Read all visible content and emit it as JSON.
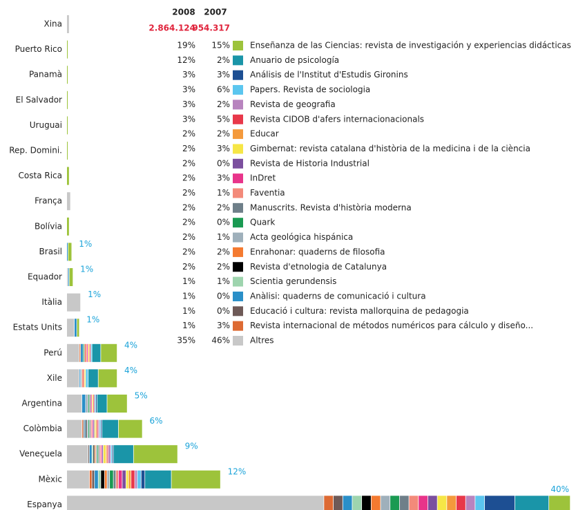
{
  "chart_data": {
    "type": "stacked-bar",
    "columns": [
      "2008",
      "2007"
    ],
    "totals": [
      "2.864.124",
      "954.317"
    ],
    "series": [
      {
        "name": "Enseñanza de las Ciencias: revista de investigación y experiencias didácticas",
        "color": "#9dc33b",
        "share_2008": "19%",
        "share_2007": "15%"
      },
      {
        "name": "Anuario de psicología",
        "color": "#1a95a8",
        "share_2008": "12%",
        "share_2007": "2%"
      },
      {
        "name": "Análisis de l'Institut d'Estudis Gironins",
        "color": "#1d4f93",
        "share_2008": "3%",
        "share_2007": "3%"
      },
      {
        "name": "Papers. Revista de sociologia",
        "color": "#5bc6ef",
        "share_2008": "3%",
        "share_2007": "6%"
      },
      {
        "name": "Revista de geografia",
        "color": "#b884bf",
        "share_2008": "3%",
        "share_2007": "2%"
      },
      {
        "name": "Revista CIDOB d'afers internacionacionals",
        "color": "#e8384a",
        "share_2008": "3%",
        "share_2007": "5%"
      },
      {
        "name": "Educar",
        "color": "#f49a3c",
        "share_2008": "2%",
        "share_2007": "2%"
      },
      {
        "name": "Gimbernat: revista catalana d'història de la medicina i de la ciència",
        "color": "#f6e646",
        "share_2008": "2%",
        "share_2007": "3%"
      },
      {
        "name": "Revista de Historia Industrial",
        "color": "#7b4f9e",
        "share_2008": "2%",
        "share_2007": "0%"
      },
      {
        "name": "InDret",
        "color": "#e8348a",
        "share_2008": "2%",
        "share_2007": "3%"
      },
      {
        "name": "Faventia",
        "color": "#f38a7a",
        "share_2008": "2%",
        "share_2007": "1%"
      },
      {
        "name": "Manuscrits. Revista d'història moderna",
        "color": "#6e7f89",
        "share_2008": "2%",
        "share_2007": "2%"
      },
      {
        "name": "Quark",
        "color": "#1a9a52",
        "share_2008": "2%",
        "share_2007": "0%"
      },
      {
        "name": "Acta geológica hispánica",
        "color": "#9fb0bb",
        "share_2008": "2%",
        "share_2007": "1%"
      },
      {
        "name": "Enrahonar: quaderns de filosofia",
        "color": "#f47a30",
        "share_2008": "2%",
        "share_2007": "2%"
      },
      {
        "name": "Revista d'etnologia de Catalunya",
        "color": "#000000",
        "share_2008": "2%",
        "share_2007": "2%"
      },
      {
        "name": "Scientia gerundensis",
        "color": "#9ed4ae",
        "share_2008": "1%",
        "share_2007": "1%"
      },
      {
        "name": "Anàlisi: quaderns de comunicació i cultura",
        "color": "#2a8fc8",
        "share_2008": "1%",
        "share_2007": "0%"
      },
      {
        "name": "Educació i cultura: revista mallorquina de pedagogia",
        "color": "#6e5a57",
        "share_2008": "1%",
        "share_2007": "0%"
      },
      {
        "name": "Revista internacional de métodos numéricos para cálculo y diseño...",
        "color": "#dd6a33",
        "share_2008": "1%",
        "share_2007": "3%"
      },
      {
        "name": "Altres",
        "color": "#c8c8c8",
        "share_2008": "35%",
        "share_2007": "46%"
      }
    ],
    "countries": [
      {
        "name": "Xina",
        "values": [
          0,
          0,
          0,
          0,
          0,
          0,
          0,
          0,
          0,
          0,
          0,
          0,
          0,
          0,
          0,
          0,
          0,
          0,
          0,
          0,
          0.2
        ]
      },
      {
        "name": "Puerto Rico",
        "values": [
          0.1,
          0,
          0,
          0,
          0,
          0,
          0,
          0,
          0,
          0,
          0,
          0,
          0,
          0,
          0,
          0,
          0,
          0,
          0,
          0,
          0
        ]
      },
      {
        "name": "Panamà",
        "values": [
          0.1,
          0,
          0,
          0,
          0,
          0,
          0,
          0,
          0,
          0,
          0,
          0,
          0,
          0,
          0,
          0,
          0,
          0,
          0,
          0,
          0
        ]
      },
      {
        "name": "El Salvador",
        "values": [
          0.1,
          0,
          0,
          0,
          0,
          0,
          0,
          0,
          0,
          0,
          0,
          0,
          0,
          0,
          0,
          0,
          0,
          0,
          0,
          0,
          0
        ]
      },
      {
        "name": "Uruguai",
        "values": [
          0.1,
          0,
          0,
          0,
          0,
          0,
          0,
          0,
          0,
          0,
          0,
          0,
          0,
          0,
          0,
          0,
          0,
          0,
          0,
          0,
          0
        ]
      },
      {
        "name": "Rep. Domini.",
        "values": [
          0.1,
          0,
          0,
          0,
          0,
          0,
          0,
          0,
          0,
          0,
          0,
          0,
          0,
          0,
          0,
          0,
          0,
          0,
          0,
          0,
          0
        ]
      },
      {
        "name": "Costa Rica",
        "values": [
          0.2,
          0,
          0,
          0,
          0,
          0,
          0,
          0,
          0,
          0,
          0,
          0,
          0,
          0,
          0,
          0,
          0,
          0,
          0,
          0,
          0
        ]
      },
      {
        "name": "França",
        "values": [
          0,
          0,
          0,
          0,
          0,
          0,
          0,
          0,
          0,
          0,
          0,
          0,
          0,
          0,
          0,
          0,
          0,
          0,
          0,
          0,
          0.3
        ]
      },
      {
        "name": "Bolívia",
        "values": [
          0.2,
          0,
          0,
          0,
          0,
          0,
          0,
          0,
          0,
          0,
          0,
          0,
          0,
          0,
          0,
          0,
          0,
          0,
          0,
          0,
          0
        ]
      },
      {
        "name": "Brasil",
        "label": "1%",
        "values": [
          0.3,
          0,
          0,
          0,
          0,
          0,
          0,
          0,
          0,
          0,
          0,
          0,
          0,
          0,
          0,
          0,
          0,
          0.1,
          0,
          0,
          0
        ]
      },
      {
        "name": "Equador",
        "label": "1%",
        "values": [
          0.3,
          0,
          0,
          0,
          0,
          0,
          0,
          0,
          0,
          0,
          0,
          0,
          0,
          0,
          0,
          0,
          0,
          0.1,
          0,
          0,
          0.1
        ]
      },
      {
        "name": "Itàlia",
        "label": "1%",
        "values": [
          0,
          0,
          0,
          0,
          0,
          0,
          0,
          0,
          0,
          0,
          0,
          0,
          0,
          0,
          0,
          0,
          0,
          0,
          0,
          0,
          1.1
        ]
      },
      {
        "name": "Estats Units",
        "label": "1%",
        "values": [
          0.2,
          0,
          0,
          0,
          0,
          0,
          0,
          0,
          0,
          0,
          0,
          0,
          0,
          0,
          0,
          0,
          0,
          0.2,
          0,
          0,
          0.6
        ]
      },
      {
        "name": "Perú",
        "label": "4%",
        "values": [
          1.3,
          0.7,
          0,
          0.1,
          0,
          0.1,
          0,
          0.1,
          0,
          0.1,
          0.2,
          0,
          0.1,
          0,
          0,
          0,
          0,
          0.2,
          0,
          0.1,
          1.0
        ]
      },
      {
        "name": "Xile",
        "label": "4%",
        "values": [
          1.5,
          0.8,
          0,
          0.2,
          0,
          0,
          0,
          0.1,
          0,
          0,
          0.2,
          0,
          0,
          0.1,
          0,
          0,
          0,
          0.1,
          0,
          0,
          1.0
        ]
      },
      {
        "name": "Argentina",
        "label": "5%",
        "values": [
          1.6,
          0.8,
          0.1,
          0.1,
          0,
          0.1,
          0,
          0.1,
          0,
          0.1,
          0,
          0.1,
          0.1,
          0.2,
          0,
          0,
          0,
          0.3,
          0,
          0,
          1.2
        ]
      },
      {
        "name": "Colòmbia",
        "label": "6%",
        "values": [
          1.9,
          1.3,
          0.1,
          0.1,
          0.1,
          0.1,
          0.1,
          0.1,
          0.1,
          0.1,
          0.1,
          0.1,
          0.1,
          0.1,
          0,
          0.1,
          0,
          0.1,
          0.1,
          0.1,
          1.2
        ]
      },
      {
        "name": "Veneçuela",
        "label": "9%",
        "values": [
          3.5,
          1.6,
          0.1,
          0.1,
          0.2,
          0.1,
          0.1,
          0.2,
          0.1,
          0.1,
          0.1,
          0.1,
          0.1,
          0.1,
          0.1,
          0.1,
          0.1,
          0.2,
          0.1,
          0,
          1.7
        ]
      },
      {
        "name": "Mèxic",
        "label": "12%",
        "values": [
          3.9,
          2.1,
          0.3,
          0.3,
          0.2,
          0.3,
          0.2,
          0.2,
          0.3,
          0.3,
          0.2,
          0.2,
          0.3,
          0.2,
          0.2,
          0.3,
          0.2,
          0.3,
          0.2,
          0.2,
          1.8
        ]
      },
      {
        "name": "Espanya",
        "label": "40%",
        "values": [
          1.7,
          2.7,
          2.4,
          0.75,
          0.75,
          0.75,
          0.75,
          0.75,
          0.75,
          0.75,
          0.75,
          0.75,
          0.75,
          0.75,
          0.75,
          0.75,
          0.75,
          0.75,
          0.75,
          0.75,
          20.4
        ]
      }
    ]
  }
}
